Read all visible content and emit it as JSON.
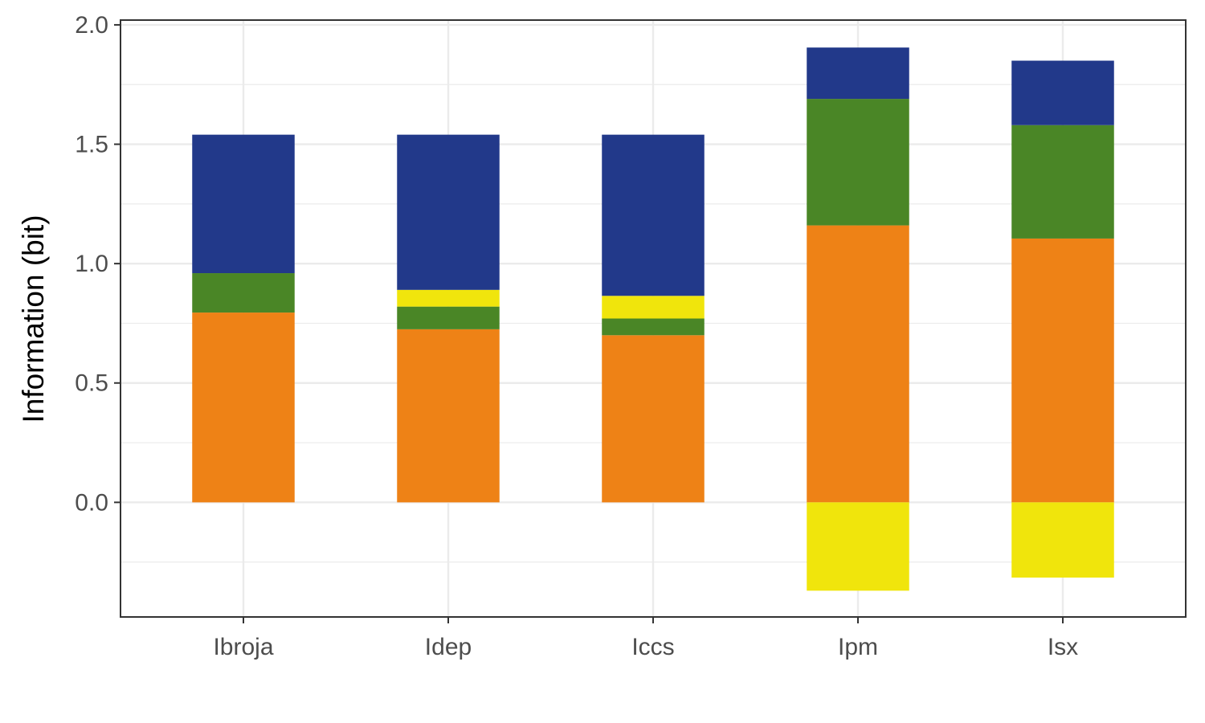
{
  "chart_data": {
    "type": "bar",
    "stacked": true,
    "title": "",
    "xlabel": "",
    "ylabel": "Information (bit)",
    "categories": [
      "Ibroja",
      "Idep",
      "Iccs",
      "Ipm",
      "Isx"
    ],
    "ylim": [
      -0.48,
      2.02
    ],
    "yticks": [
      0.0,
      0.5,
      1.0,
      1.5,
      2.0
    ],
    "ytick_labels": [
      "0.0",
      "0.5",
      "1.0",
      "1.5",
      "2.0"
    ],
    "grid": true,
    "legend": "none",
    "series": [
      {
        "color": "#EE8216",
        "values": [
          0.795,
          0.725,
          0.7,
          1.16,
          1.105
        ]
      },
      {
        "color": "#F0E50C",
        "values": [
          0.0,
          0.07,
          0.095,
          -0.37,
          -0.315
        ]
      },
      {
        "color": "#4A8626",
        "values": [
          0.165,
          0.095,
          0.07,
          0.53,
          0.475
        ]
      },
      {
        "color": "#22398A",
        "values": [
          0.58,
          0.65,
          0.675,
          0.215,
          0.27
        ]
      }
    ],
    "stack_order": [
      [
        0,
        2,
        1,
        3
      ],
      [
        0,
        2,
        1,
        3
      ],
      [
        0,
        2,
        1,
        3
      ],
      [
        0,
        2,
        3,
        1
      ],
      [
        0,
        2,
        3,
        1
      ]
    ]
  }
}
